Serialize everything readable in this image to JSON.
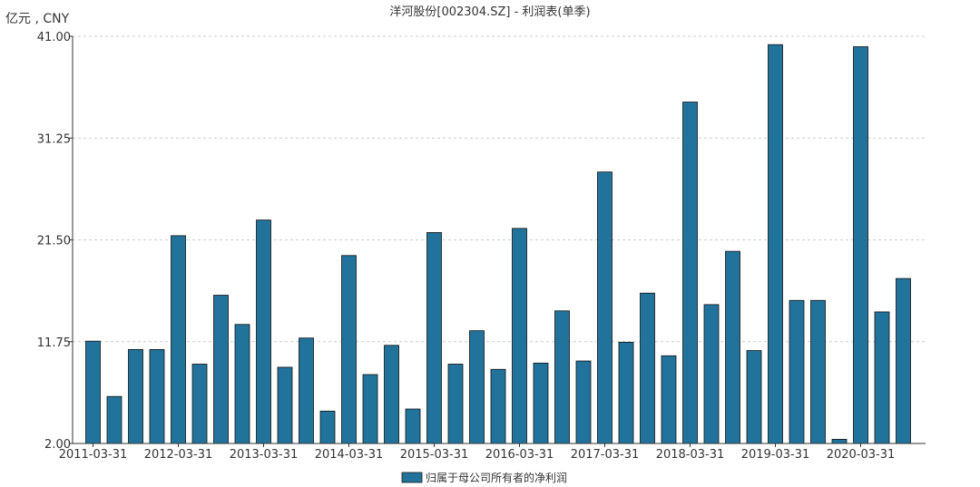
{
  "chart_data": {
    "type": "bar",
    "title": "洋河股份[002304.SZ] - 利润表(单季)",
    "unit_label": "亿元 , CNY",
    "ylim": [
      2.0,
      41.0
    ],
    "y_ticks": [
      "2.00",
      "11.75",
      "21.50",
      "31.25",
      "41.00"
    ],
    "y_tick_values": [
      2.0,
      11.75,
      21.5,
      31.25,
      41.0
    ],
    "grid": true,
    "legend_position": "bottom-center",
    "bar_color": "#21739c",
    "categories": [
      "2011-03-31",
      "2011-06-30",
      "2011-09-30",
      "2011-12-31",
      "2012-03-31",
      "2012-06-30",
      "2012-09-30",
      "2012-12-31",
      "2013-03-31",
      "2013-06-30",
      "2013-09-30",
      "2013-12-31",
      "2014-03-31",
      "2014-06-30",
      "2014-09-30",
      "2014-12-31",
      "2015-03-31",
      "2015-06-30",
      "2015-09-30",
      "2015-12-31",
      "2016-03-31",
      "2016-06-30",
      "2016-09-30",
      "2016-12-31",
      "2017-03-31",
      "2017-06-30",
      "2017-09-30",
      "2017-12-31",
      "2018-03-31",
      "2018-06-30",
      "2018-09-30",
      "2018-12-31",
      "2019-03-31",
      "2019-06-30",
      "2019-09-30",
      "2019-12-31",
      "2020-03-31",
      "2020-06-30",
      "2020-09-30"
    ],
    "x_tick_labels": [
      "2011-03-31",
      "2012-03-31",
      "2013-03-31",
      "2014-03-31",
      "2015-03-31",
      "2016-03-31",
      "2017-03-31",
      "2018-03-31",
      "2019-03-31",
      "2020-03-31"
    ],
    "series": [
      {
        "name": "归属于母公司所有者的净利润",
        "values": [
          11.8,
          6.5,
          11.0,
          11.0,
          21.9,
          9.6,
          16.2,
          13.4,
          23.4,
          9.3,
          12.1,
          5.1,
          20.0,
          8.6,
          11.4,
          5.3,
          22.2,
          9.6,
          12.8,
          9.1,
          22.6,
          9.7,
          14.7,
          9.9,
          28.0,
          11.7,
          16.4,
          10.4,
          34.7,
          15.3,
          20.4,
          10.9,
          40.2,
          15.7,
          15.7,
          2.4,
          40.0,
          14.6,
          17.8
        ]
      }
    ]
  }
}
